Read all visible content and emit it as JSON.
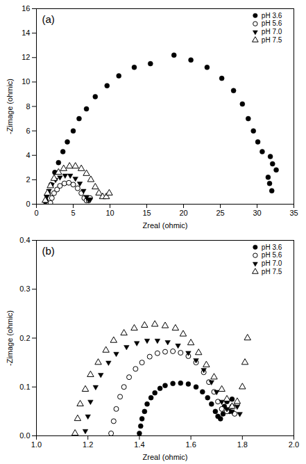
{
  "chart_data": [
    {
      "type": "scatter",
      "title": "(a)",
      "x_label": "Zreal (ohmic)",
      "y_label": "-Zimage (ohmic)",
      "xlim": [
        0,
        35
      ],
      "xticks": [
        0,
        5,
        10,
        15,
        20,
        25,
        30,
        35
      ],
      "ylim": [
        0,
        16
      ],
      "yticks": [
        0,
        2,
        4,
        6,
        8,
        10,
        12,
        14,
        16
      ],
      "grid": false,
      "legend": "upper right",
      "series": [
        {
          "name": "pH 3.6",
          "color": "#000000",
          "marker": "circle",
          "x": [
            1.3,
            1.6,
            2.0,
            2.5,
            3.0,
            3.6,
            4.2,
            5.0,
            5.8,
            6.8,
            8.0,
            9.6,
            11.2,
            13.3,
            15.5,
            18.7,
            21.0,
            23.2,
            25.2,
            26.8,
            28.0,
            28.8,
            29.5,
            30.1,
            30.7,
            31.5,
            31.7,
            32.0,
            31.8,
            32.1,
            32.6
          ],
          "values": [
            0.3,
            0.9,
            1.6,
            2.6,
            3.4,
            4.3,
            5.1,
            6.0,
            7.0,
            7.8,
            8.8,
            9.7,
            10.5,
            11.2,
            11.5,
            12.2,
            11.8,
            11.2,
            10.3,
            9.3,
            8.2,
            7.0,
            6.0,
            5.1,
            4.3,
            2.2,
            1.7,
            1.1,
            3.9,
            3.3,
            2.8
          ]
        },
        {
          "name": "pH 5.6",
          "color": "#000000",
          "marker": "circle_open",
          "x": [
            1.9,
            2.1,
            2.4,
            2.8,
            3.2,
            3.8,
            4.4,
            5.0,
            5.6,
            6.1,
            6.5,
            6.8,
            7.1,
            7.3
          ],
          "values": [
            0.1,
            0.5,
            0.9,
            1.2,
            1.5,
            1.7,
            1.75,
            1.6,
            1.3,
            0.9,
            0.5,
            0.3,
            0.3,
            0.5
          ]
        },
        {
          "name": "pH 7.0",
          "color": "#000000",
          "marker": "triangle_down",
          "x": [
            1.2,
            1.4,
            1.7,
            2.1,
            2.6,
            3.2,
            3.9,
            4.6,
            5.3,
            5.9,
            6.4,
            6.8,
            7.1,
            7.3
          ],
          "values": [
            0.1,
            0.6,
            1.1,
            1.6,
            2.0,
            2.2,
            2.35,
            2.35,
            2.1,
            1.7,
            1.1,
            0.6,
            0.35,
            0.4
          ]
        },
        {
          "name": "pH 7.5",
          "color": "#000000",
          "marker": "triangle_open",
          "x": [
            1.2,
            1.5,
            1.9,
            2.4,
            3.0,
            3.7,
            4.5,
            5.3,
            6.1,
            6.8,
            7.4,
            8.0,
            8.5,
            9.0,
            9.5,
            9.9
          ],
          "values": [
            0.3,
            0.9,
            1.5,
            2.1,
            2.6,
            2.9,
            3.1,
            3.1,
            2.9,
            2.5,
            2.0,
            1.4,
            0.9,
            0.6,
            0.6,
            0.9
          ]
        }
      ]
    },
    {
      "type": "scatter",
      "title": "(b)",
      "x_label": "Zreal (ohmic)",
      "y_label": "-Zimage (ohmic)",
      "xlim": [
        1.0,
        2.0
      ],
      "xticks": [
        {
          "value": 1.0,
          "label": "1.0"
        },
        1.2,
        1.4,
        1.6,
        1.8,
        {
          "value": 2.0,
          "label": "2.0"
        }
      ],
      "ylim": [
        0,
        0.4
      ],
      "yticks": [
        {
          "value": 0,
          "label": "0.0"
        },
        0.1,
        0.2,
        0.3,
        0.4
      ],
      "grid": false,
      "legend": "upper right",
      "series": [
        {
          "name": "pH 3.6",
          "color": "#000000",
          "marker": "circle",
          "x": [
            1.4,
            1.405,
            1.41,
            1.42,
            1.43,
            1.445,
            1.46,
            1.48,
            1.5,
            1.53,
            1.56,
            1.59,
            1.62,
            1.645,
            1.665,
            1.68,
            1.695,
            1.705,
            1.715,
            1.725,
            1.73,
            1.74,
            1.75,
            1.76
          ],
          "values": [
            0.005,
            0.02,
            0.035,
            0.05,
            0.065,
            0.078,
            0.088,
            0.097,
            0.103,
            0.107,
            0.108,
            0.106,
            0.1,
            0.09,
            0.078,
            0.065,
            0.05,
            0.04,
            0.035,
            0.045,
            0.06,
            0.07,
            0.05,
            0.075
          ]
        },
        {
          "name": "pH 5.6",
          "color": "#000000",
          "marker": "circle_open",
          "x": [
            1.29,
            1.3,
            1.31,
            1.325,
            1.34,
            1.36,
            1.385,
            1.41,
            1.44,
            1.47,
            1.5,
            1.53,
            1.56,
            1.59,
            1.62,
            1.65,
            1.67,
            1.69,
            1.705,
            1.72,
            1.74,
            1.76,
            1.77,
            1.78
          ],
          "values": [
            0.005,
            0.03,
            0.055,
            0.08,
            0.1,
            0.12,
            0.137,
            0.15,
            0.162,
            0.169,
            0.172,
            0.173,
            0.17,
            0.163,
            0.15,
            0.13,
            0.11,
            0.09,
            0.07,
            0.055,
            0.05,
            0.06,
            0.045,
            0.065
          ]
        },
        {
          "name": "pH 7.0",
          "color": "#000000",
          "marker": "triangle_down",
          "x": [
            1.19,
            1.2,
            1.21,
            1.23,
            1.25,
            1.28,
            1.31,
            1.35,
            1.39,
            1.43,
            1.47,
            1.51,
            1.55,
            1.59,
            1.62,
            1.65,
            1.68,
            1.7,
            1.72,
            1.74,
            1.76,
            1.78,
            1.79
          ],
          "values": [
            0.01,
            0.04,
            0.07,
            0.1,
            0.125,
            0.15,
            0.168,
            0.182,
            0.19,
            0.195,
            0.195,
            0.192,
            0.185,
            0.17,
            0.155,
            0.135,
            0.11,
            0.09,
            0.07,
            0.055,
            0.05,
            0.06,
            0.045
          ]
        },
        {
          "name": "pH 7.5",
          "color": "#000000",
          "marker": "triangle_open",
          "x": [
            1.15,
            1.16,
            1.17,
            1.19,
            1.21,
            1.24,
            1.27,
            1.3,
            1.34,
            1.38,
            1.42,
            1.46,
            1.5,
            1.54,
            1.57,
            1.6,
            1.63,
            1.66,
            1.69,
            1.72,
            1.74,
            1.76,
            1.78,
            1.8,
            1.81,
            1.82
          ],
          "values": [
            0.005,
            0.035,
            0.065,
            0.095,
            0.125,
            0.15,
            0.175,
            0.195,
            0.21,
            0.22,
            0.226,
            0.228,
            0.225,
            0.22,
            0.208,
            0.19,
            0.17,
            0.145,
            0.12,
            0.095,
            0.075,
            0.06,
            0.07,
            0.1,
            0.15,
            0.2
          ]
        }
      ]
    }
  ]
}
